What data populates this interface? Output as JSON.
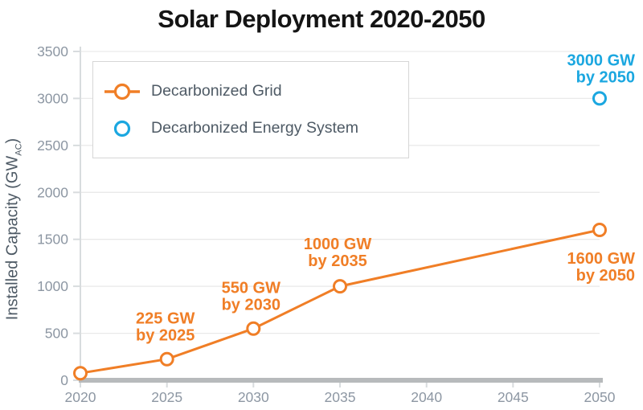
{
  "chart_data": {
    "type": "line",
    "title": "Solar Deployment 2020-2050",
    "ylabel_prefix": "Installed Capacity (GW",
    "ylabel_sub": "AC",
    "ylabel_suffix": ")",
    "xlabel": "",
    "xlim": [
      2020,
      2050
    ],
    "ylim": [
      0,
      3500
    ],
    "yticks": [
      0,
      500,
      1000,
      1500,
      2000,
      2500,
      3000,
      3500
    ],
    "xticks": [
      2020,
      2025,
      2030,
      2035,
      2040,
      2045,
      2050
    ],
    "grid": true,
    "legend_position": "upper-left-inside",
    "series": [
      {
        "name": "Decarbonized Grid",
        "type": "line",
        "color": "#F07E26",
        "marker": "open-circle",
        "x": [
          2020,
          2025,
          2030,
          2035,
          2050
        ],
        "values": [
          75,
          225,
          550,
          1000,
          1600
        ]
      },
      {
        "name": "Decarbonized Energy System",
        "type": "scatter",
        "color": "#1BA7E0",
        "marker": "open-circle",
        "x": [
          2050
        ],
        "values": [
          3000
        ]
      }
    ],
    "annotations": [
      {
        "series": 0,
        "lines": [
          "225 GW",
          "by 2025"
        ],
        "year": 2025,
        "gw": 225,
        "anchor": "middle",
        "dx": -2,
        "dy": [
          -44,
          -23
        ]
      },
      {
        "series": 0,
        "lines": [
          "550 GW",
          "by 2030"
        ],
        "year": 2030,
        "gw": 550,
        "anchor": "middle",
        "dx": -3,
        "dy": [
          -44,
          -23
        ]
      },
      {
        "series": 0,
        "lines": [
          "1000 GW",
          "by 2035"
        ],
        "year": 2035,
        "gw": 1000,
        "anchor": "middle",
        "dx": -3,
        "dy": [
          -46,
          -25
        ]
      },
      {
        "series": 0,
        "lines": [
          "1600 GW",
          "by 2050"
        ],
        "year": 2050,
        "gw": 1600,
        "anchor": "end",
        "dx": 44,
        "dy": [
          42,
          63
        ]
      },
      {
        "series": 1,
        "lines": [
          "3000 GW",
          "by 2050"
        ],
        "year": 2050,
        "gw": 3000,
        "anchor": "end",
        "dx": 44,
        "dy": [
          -41,
          -20
        ]
      }
    ],
    "colors": {
      "grid_line": "#E9E9E9",
      "axis_line": "#D8DCDE",
      "x_axis": "#B7BABC",
      "tick_label": "#8D97A3",
      "legend_text": "#4E5A65",
      "title": "#141414"
    }
  }
}
